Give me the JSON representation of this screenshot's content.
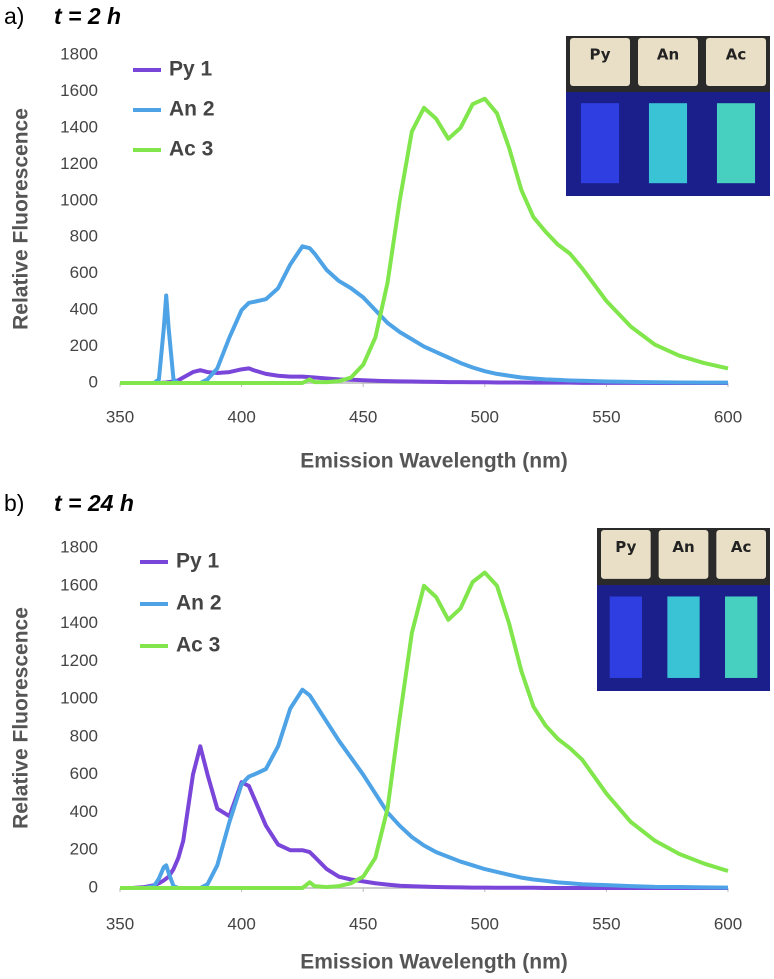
{
  "chart_data": [
    {
      "type": "line",
      "panel_label": "a)",
      "title": "t = 2 h",
      "xlabel": "Emission Wavelength (nm)",
      "ylabel": "Relative Fluorescence",
      "photo_labels": [
        "Py",
        "An",
        "Ac"
      ],
      "xlim": [
        350,
        600
      ],
      "ylim": [
        0,
        1800
      ],
      "xticks": [
        350,
        400,
        450,
        500,
        550,
        600
      ],
      "yticks": [
        0,
        200,
        400,
        600,
        800,
        1000,
        1200,
        1400,
        1600,
        1800
      ],
      "x": [
        350,
        355,
        360,
        364,
        366,
        368,
        369,
        370,
        372,
        374,
        376,
        380,
        383,
        386,
        390,
        395,
        400,
        403,
        405,
        410,
        415,
        420,
        425,
        428,
        430,
        435,
        440,
        445,
        450,
        455,
        460,
        465,
        470,
        475,
        480,
        485,
        490,
        495,
        500,
        505,
        510,
        515,
        520,
        525,
        530,
        535,
        540,
        545,
        550,
        560,
        570,
        580,
        590,
        600
      ],
      "series": [
        {
          "name": "Py 1",
          "color": "#7a45d9",
          "values": [
            0,
            0,
            0,
            0,
            0,
            2,
            3,
            5,
            8,
            15,
            30,
            60,
            70,
            60,
            55,
            60,
            75,
            80,
            70,
            50,
            40,
            35,
            35,
            32,
            30,
            25,
            20,
            18,
            15,
            12,
            10,
            9,
            8,
            7,
            6,
            5,
            5,
            4,
            4,
            3,
            3,
            3,
            2,
            2,
            2,
            2,
            1,
            1,
            1,
            1,
            0,
            0,
            0,
            0
          ]
        },
        {
          "name": "An 2",
          "color": "#4da3e6",
          "values": [
            0,
            0,
            0,
            0,
            20,
            300,
            480,
            300,
            20,
            0,
            0,
            0,
            0,
            20,
            80,
            250,
            400,
            440,
            445,
            460,
            520,
            650,
            750,
            740,
            710,
            620,
            560,
            520,
            470,
            400,
            330,
            280,
            240,
            200,
            170,
            140,
            110,
            85,
            65,
            50,
            40,
            30,
            25,
            20,
            17,
            14,
            12,
            10,
            8,
            6,
            4,
            3,
            2,
            2
          ]
        },
        {
          "name": "Ac 3",
          "color": "#80e64c",
          "values": [
            0,
            0,
            0,
            0,
            0,
            0,
            0,
            0,
            0,
            0,
            0,
            0,
            0,
            0,
            0,
            0,
            0,
            0,
            0,
            0,
            0,
            0,
            0,
            20,
            5,
            5,
            10,
            30,
            100,
            250,
            550,
            1000,
            1380,
            1510,
            1450,
            1340,
            1400,
            1530,
            1560,
            1480,
            1290,
            1060,
            910,
            830,
            760,
            710,
            630,
            540,
            450,
            310,
            210,
            150,
            110,
            80
          ]
        }
      ]
    },
    {
      "type": "line",
      "panel_label": "b)",
      "title": "t = 24 h",
      "xlabel": "Emission Wavelength (nm)",
      "ylabel": "Relative Fluorescence",
      "photo_labels": [
        "Py",
        "An",
        "Ac"
      ],
      "xlim": [
        350,
        600
      ],
      "ylim": [
        0,
        1800
      ],
      "xticks": [
        350,
        400,
        450,
        500,
        550,
        600
      ],
      "yticks": [
        0,
        200,
        400,
        600,
        800,
        1000,
        1200,
        1400,
        1600,
        1800
      ],
      "x": [
        350,
        355,
        360,
        364,
        366,
        368,
        369,
        370,
        372,
        374,
        376,
        380,
        383,
        386,
        390,
        395,
        400,
        403,
        405,
        410,
        415,
        420,
        425,
        428,
        430,
        435,
        440,
        445,
        450,
        455,
        460,
        465,
        470,
        475,
        480,
        485,
        490,
        495,
        500,
        505,
        510,
        515,
        520,
        525,
        530,
        535,
        540,
        545,
        550,
        560,
        570,
        580,
        590,
        600
      ],
      "series": [
        {
          "name": "Py 1",
          "color": "#7a45d9",
          "values": [
            0,
            0,
            5,
            15,
            25,
            40,
            50,
            60,
            100,
            160,
            250,
            600,
            750,
            600,
            420,
            380,
            560,
            540,
            480,
            330,
            230,
            200,
            200,
            190,
            165,
            100,
            60,
            45,
            35,
            25,
            18,
            12,
            9,
            7,
            5,
            4,
            3,
            2,
            2,
            1,
            1,
            1,
            1,
            0,
            0,
            0,
            0,
            0,
            0,
            0,
            0,
            0,
            0,
            0
          ]
        },
        {
          "name": "An 2",
          "color": "#4da3e6",
          "values": [
            0,
            0,
            0,
            10,
            50,
            110,
            120,
            80,
            10,
            0,
            0,
            0,
            0,
            20,
            120,
            350,
            550,
            590,
            600,
            630,
            750,
            950,
            1050,
            1020,
            980,
            880,
            780,
            690,
            600,
            500,
            400,
            330,
            270,
            225,
            190,
            165,
            140,
            120,
            100,
            85,
            70,
            55,
            45,
            38,
            30,
            25,
            20,
            17,
            15,
            10,
            6,
            5,
            3,
            2
          ]
        },
        {
          "name": "Ac 3",
          "color": "#80e64c",
          "values": [
            0,
            0,
            0,
            0,
            0,
            0,
            0,
            0,
            0,
            0,
            0,
            0,
            0,
            0,
            0,
            0,
            0,
            0,
            0,
            0,
            0,
            0,
            0,
            30,
            10,
            5,
            10,
            25,
            60,
            160,
            420,
            900,
            1350,
            1600,
            1540,
            1420,
            1480,
            1620,
            1670,
            1600,
            1400,
            1150,
            960,
            860,
            790,
            740,
            680,
            590,
            500,
            350,
            250,
            180,
            130,
            90
          ]
        }
      ]
    }
  ]
}
